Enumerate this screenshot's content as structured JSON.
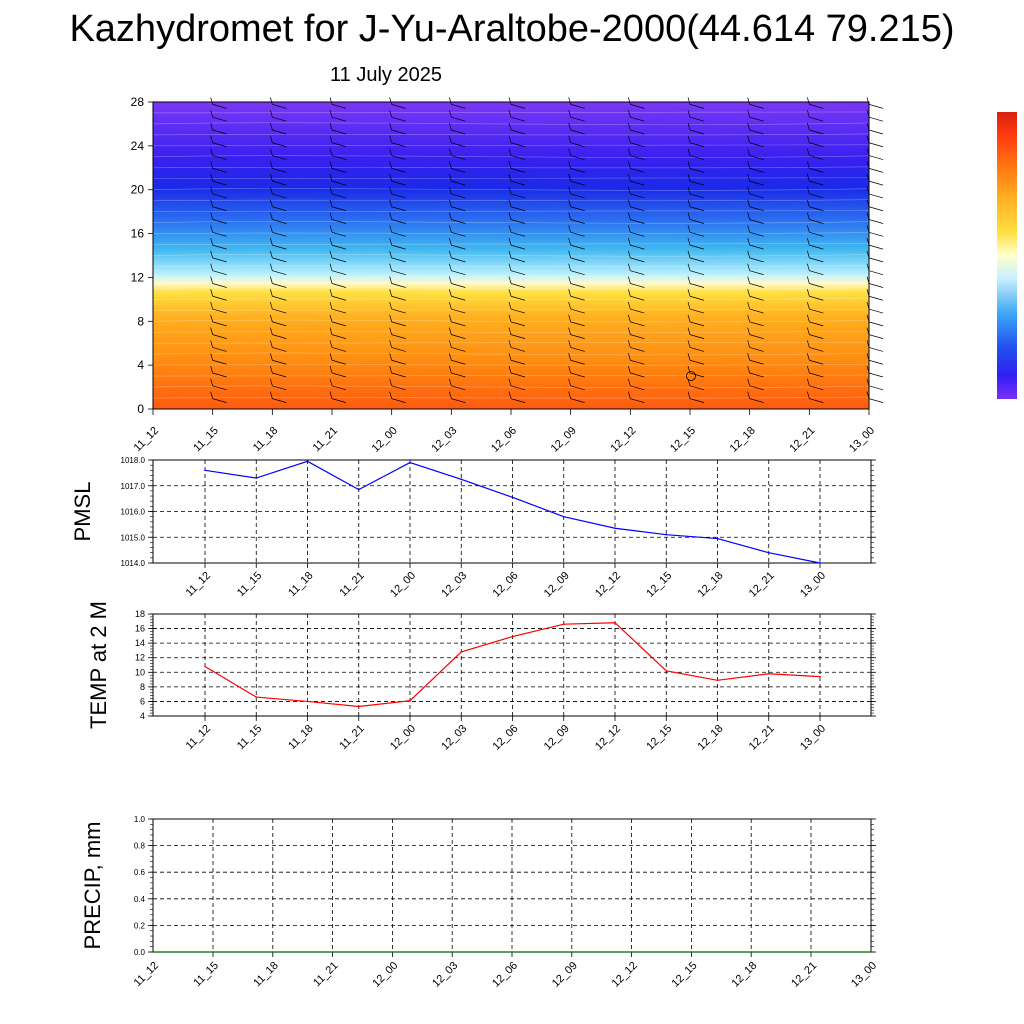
{
  "header": {
    "title": "Kazhydromet for J-Yu-Araltobe-2000(44.614 79.215)",
    "date": "11 July 2025"
  },
  "colors": {
    "pmsl_line": "#0000ff",
    "temp_line": "#ff0000",
    "precip_line": "#006400",
    "colorbar": [
      "#7b2ff7",
      "#5a1cf0",
      "#2020e8",
      "#1e50f0",
      "#2f8ff5",
      "#5ec8f0",
      "#c8f0ff",
      "#ffffd0",
      "#ffe040",
      "#ffc020",
      "#ff9a10",
      "#ff7010",
      "#ff4a10",
      "#e02010"
    ]
  },
  "chart_data": [
    {
      "type": "heatmap",
      "name": "cross-section",
      "categories": [
        "11_12",
        "11_15",
        "11_18",
        "11_21",
        "12_00",
        "12_03",
        "12_06",
        "12_09",
        "12_12",
        "12_15",
        "12_18",
        "12_21",
        "13_00"
      ],
      "y_ticks": [
        "0",
        "4",
        "8",
        "12",
        "16",
        "20",
        "24",
        "28"
      ],
      "ylim": [
        0,
        28
      ],
      "xlabel": "",
      "ylabel": ""
    },
    {
      "type": "line",
      "ylabel": "PMSL",
      "categories": [
        "11_12",
        "11_15",
        "11_18",
        "11_21",
        "12_00",
        "12_03",
        "12_06",
        "12_09",
        "12_12",
        "12_15",
        "12_18",
        "12_21",
        "13_00"
      ],
      "y_ticks": [
        "1014.0",
        "1015.0",
        "1016.0",
        "1017.0",
        "1018.0"
      ],
      "ylim": [
        1014,
        1018
      ],
      "values": [
        1017.6,
        1017.3,
        1017.95,
        1016.85,
        1017.9,
        1017.25,
        1016.55,
        1015.8,
        1015.35,
        1015.1,
        1014.95,
        1014.4,
        1014.0
      ]
    },
    {
      "type": "line",
      "ylabel": "TEMP at 2 M",
      "categories": [
        "11_12",
        "11_15",
        "11_18",
        "11_21",
        "12_00",
        "12_03",
        "12_06",
        "12_09",
        "12_12",
        "12_15",
        "12_18",
        "12_21",
        "13_00"
      ],
      "y_ticks": [
        "4",
        "6",
        "8",
        "10",
        "12",
        "14",
        "16",
        "18"
      ],
      "ylim": [
        4,
        18
      ],
      "values": [
        10.8,
        6.6,
        6.0,
        5.3,
        6.1,
        12.8,
        14.9,
        16.6,
        16.8,
        10.2,
        8.9,
        9.8,
        9.4
      ]
    },
    {
      "type": "line",
      "ylabel": "PRECIP, mm",
      "categories": [
        "11_12",
        "11_15",
        "11_18",
        "11_21",
        "12_00",
        "12_03",
        "12_06",
        "12_09",
        "12_12",
        "12_15",
        "12_18",
        "12_21",
        "13_00"
      ],
      "y_ticks": [
        "0.0",
        "0.2",
        "0.4",
        "0.6",
        "0.8",
        "1.0"
      ],
      "ylim": [
        0,
        1
      ],
      "values": [
        0,
        0,
        0,
        0,
        0,
        0,
        0,
        0,
        0,
        0,
        0,
        0,
        0
      ]
    }
  ]
}
